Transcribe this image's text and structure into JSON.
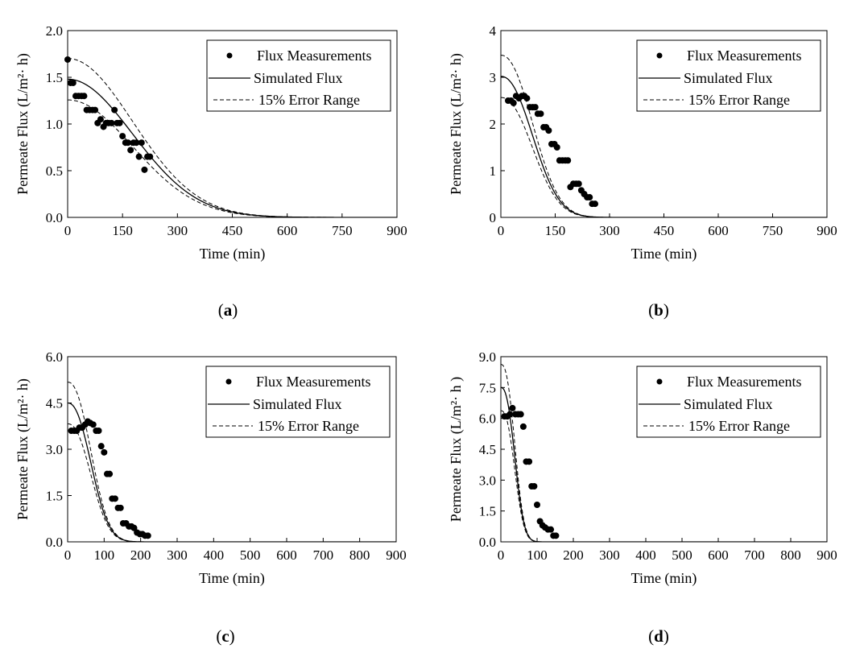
{
  "legend": {
    "measurements": "Flux Measurements",
    "simulated": "Simulated Flux",
    "error_range": "15% Error Range"
  },
  "colors": {
    "ink": "#000000",
    "background": "#ffffff"
  },
  "chart_data": [
    {
      "type": "line",
      "panel_label": "a",
      "xlabel": "Time (min)",
      "ylabel": "Permeate Flux (L/m²· h)",
      "xlim": [
        0,
        900
      ],
      "ylim": [
        0,
        2.0
      ],
      "x_ticks": [
        0,
        150,
        300,
        450,
        600,
        750,
        900
      ],
      "y_ticks": [
        0.0,
        0.5,
        1.0,
        1.5,
        2.0
      ],
      "y_tick_labels": [
        "0.0",
        "0.5",
        "1.0",
        "1.5",
        "2.0"
      ],
      "legend_position": "top-right",
      "model": {
        "j0": 1.48,
        "k": 1.6e-05,
        "n": 2.0
      },
      "series": [
        {
          "name": "Flux Measurements",
          "kind": "scatter",
          "x": [
            0,
            8,
            15,
            22,
            30,
            38,
            45,
            52,
            60,
            68,
            75,
            82,
            90,
            98,
            105,
            112,
            120,
            128,
            135,
            142,
            150,
            158,
            165,
            172,
            180,
            188,
            195,
            202,
            210,
            218,
            225
          ],
          "y": [
            1.69,
            1.44,
            1.44,
            1.3,
            1.3,
            1.3,
            1.3,
            1.15,
            1.15,
            1.15,
            1.15,
            1.01,
            1.05,
            0.97,
            1.01,
            1.01,
            1.01,
            1.15,
            1.01,
            1.01,
            0.87,
            0.8,
            0.8,
            0.72,
            0.8,
            0.8,
            0.65,
            0.8,
            0.51,
            0.65,
            0.65
          ]
        },
        {
          "name": "Simulated Flux",
          "kind": "curve",
          "scale": 1.0
        },
        {
          "name": "15% Error Range",
          "kind": "dashed",
          "scale": 1.15
        },
        {
          "name": "15% Error Range",
          "kind": "dashed",
          "scale": 0.85
        }
      ]
    },
    {
      "type": "line",
      "panel_label": "b",
      "xlabel": "Time (min)",
      "ylabel": "Permeate Flux (L/m²· h)",
      "xlim": [
        0,
        900
      ],
      "ylim": [
        0,
        4
      ],
      "x_ticks": [
        0,
        150,
        300,
        450,
        600,
        750,
        900
      ],
      "y_ticks": [
        0,
        1,
        2,
        3,
        4
      ],
      "y_tick_labels": [
        "0",
        "1",
        "2",
        "3",
        "4"
      ],
      "legend_position": "top-right",
      "model": {
        "j0": 3.02,
        "k": 2.9e-05,
        "n": 2.2
      },
      "series": [
        {
          "name": "Flux Measurements",
          "kind": "scatter",
          "x": [
            20,
            28,
            35,
            42,
            50,
            58,
            65,
            72,
            80,
            88,
            95,
            102,
            110,
            118,
            125,
            132,
            140,
            148,
            155,
            162,
            170,
            178,
            185,
            192,
            200,
            208,
            215,
            222,
            230,
            238,
            245,
            252,
            260
          ],
          "y": [
            2.5,
            2.5,
            2.45,
            2.6,
            2.55,
            2.6,
            2.6,
            2.55,
            2.36,
            2.36,
            2.36,
            2.22,
            2.22,
            1.93,
            1.93,
            1.86,
            1.57,
            1.57,
            1.5,
            1.22,
            1.22,
            1.22,
            1.22,
            0.65,
            0.72,
            0.72,
            0.72,
            0.58,
            0.5,
            0.43,
            0.43,
            0.29,
            0.29
          ]
        },
        {
          "name": "Simulated Flux",
          "kind": "curve",
          "scale": 1.0
        },
        {
          "name": "15% Error Range",
          "kind": "dashed",
          "scale": 1.15
        },
        {
          "name": "15% Error Range",
          "kind": "dashed",
          "scale": 0.85
        }
      ]
    },
    {
      "type": "line",
      "panel_label": "c",
      "xlabel": "Time (min)",
      "ylabel": "Permeate Flux (L/m²· h)",
      "xlim": [
        0,
        900
      ],
      "ylim": [
        0,
        6.0
      ],
      "x_ticks": [
        0,
        100,
        200,
        300,
        400,
        500,
        600,
        700,
        800,
        900
      ],
      "y_ticks": [
        0.0,
        1.5,
        3.0,
        4.5,
        6.0
      ],
      "y_tick_labels": [
        "0.0",
        "1.5",
        "3.0",
        "4.5",
        "6.0"
      ],
      "legend_position": "top-right",
      "model": {
        "j0": 4.5,
        "k": 4e-05,
        "n": 2.3
      },
      "series": [
        {
          "name": "Flux Measurements",
          "kind": "scatter",
          "x": [
            10,
            18,
            25,
            32,
            40,
            48,
            55,
            62,
            70,
            78,
            85,
            92,
            100,
            108,
            115,
            122,
            130,
            138,
            145,
            152,
            160,
            168,
            175,
            182,
            190,
            198,
            205,
            212,
            220
          ],
          "y": [
            3.6,
            3.6,
            3.6,
            3.7,
            3.7,
            3.8,
            3.9,
            3.85,
            3.8,
            3.6,
            3.6,
            3.1,
            2.9,
            2.2,
            2.2,
            1.4,
            1.4,
            1.1,
            1.1,
            0.6,
            0.6,
            0.5,
            0.5,
            0.45,
            0.3,
            0.25,
            0.25,
            0.2,
            0.2
          ]
        },
        {
          "name": "Simulated Flux",
          "kind": "curve",
          "scale": 1.0
        },
        {
          "name": "15% Error Range",
          "kind": "dashed",
          "scale": 1.15
        },
        {
          "name": "15% Error Range",
          "kind": "dashed",
          "scale": 0.85
        }
      ]
    },
    {
      "type": "line",
      "panel_label": "d",
      "xlabel": "Time (min)",
      "ylabel": "Permeate Flux (L/m²· h )",
      "xlim": [
        0,
        900
      ],
      "ylim": [
        0,
        9.0
      ],
      "x_ticks": [
        0,
        100,
        200,
        300,
        400,
        500,
        600,
        700,
        800,
        900
      ],
      "y_ticks": [
        0.0,
        1.5,
        3.0,
        4.5,
        6.0,
        7.5,
        9.0
      ],
      "y_tick_labels": [
        "0.0",
        "1.5",
        "3.0",
        "4.5",
        "6.0",
        "7.5",
        "9.0"
      ],
      "legend_position": "top-right",
      "model": {
        "j0": 7.5,
        "k": 6.5e-05,
        "n": 2.5
      },
      "series": [
        {
          "name": "Flux Measurements",
          "kind": "scatter",
          "x": [
            10,
            18,
            25,
            32,
            40,
            48,
            55,
            62,
            70,
            78,
            85,
            92,
            100,
            108,
            115,
            122,
            130,
            138,
            145,
            152
          ],
          "y": [
            6.1,
            6.1,
            6.2,
            6.5,
            6.2,
            6.2,
            6.2,
            5.6,
            3.9,
            3.9,
            2.7,
            2.7,
            1.8,
            1.0,
            0.8,
            0.7,
            0.6,
            0.6,
            0.3,
            0.3
          ]
        },
        {
          "name": "Simulated Flux",
          "kind": "curve",
          "scale": 1.0
        },
        {
          "name": "15% Error Range",
          "kind": "dashed",
          "scale": 1.15
        },
        {
          "name": "15% Error Range",
          "kind": "dashed",
          "scale": 0.85
        }
      ]
    }
  ]
}
